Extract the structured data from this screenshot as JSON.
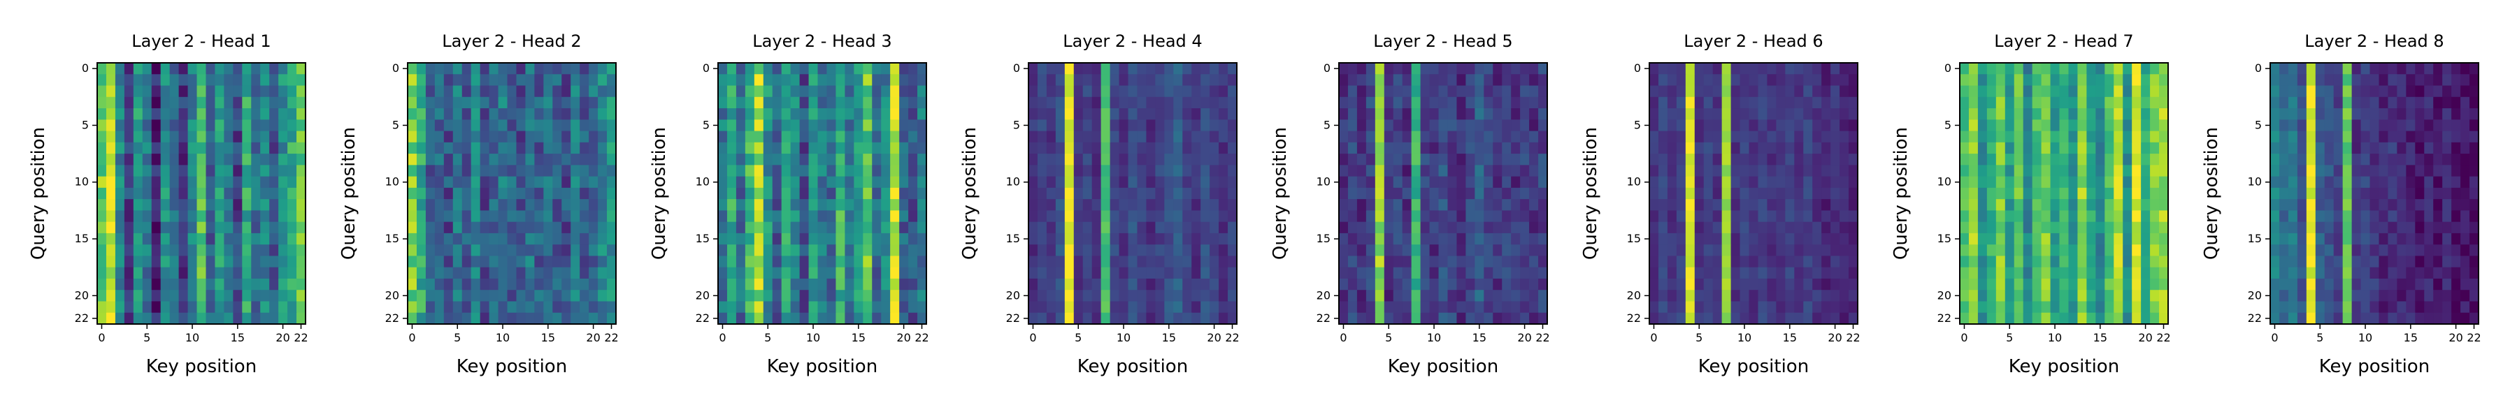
{
  "figure": {
    "colormap": "viridis",
    "background": "#ffffff"
  },
  "chart_data": [
    {
      "type": "heatmap",
      "title": "Layer 2 - Head 1",
      "xlabel": "Key position",
      "ylabel": "Query position",
      "xticks": [
        0,
        5,
        10,
        15,
        20,
        22
      ],
      "yticks": [
        0,
        5,
        10,
        15,
        20,
        22
      ],
      "n_queries": 23,
      "n_keys": 23,
      "column_profile": [
        0.78,
        0.9,
        0.45,
        0.2,
        0.55,
        0.4,
        0.1,
        0.5,
        0.35,
        0.15,
        0.45,
        0.7,
        0.3,
        0.55,
        0.4,
        0.2,
        0.6,
        0.35,
        0.45,
        0.25,
        0.5,
        0.6,
        0.75
      ],
      "row_noise": 0.14,
      "seed": 11
    },
    {
      "type": "heatmap",
      "title": "Layer 2 - Head 2",
      "xlabel": "Key position",
      "ylabel": "Query position",
      "xticks": [
        0,
        5,
        10,
        15,
        20,
        22
      ],
      "yticks": [
        0,
        5,
        10,
        15,
        20,
        22
      ],
      "n_queries": 23,
      "n_keys": 23,
      "column_profile": [
        0.8,
        0.6,
        0.3,
        0.35,
        0.25,
        0.4,
        0.3,
        0.45,
        0.25,
        0.35,
        0.4,
        0.3,
        0.25,
        0.4,
        0.3,
        0.35,
        0.3,
        0.25,
        0.4,
        0.3,
        0.35,
        0.45,
        0.5
      ],
      "row_noise": 0.15,
      "seed": 23
    },
    {
      "type": "heatmap",
      "title": "Layer 2 - Head 3",
      "xlabel": "Key position",
      "ylabel": "Query position",
      "xticks": [
        0,
        5,
        10,
        15,
        20,
        22
      ],
      "yticks": [
        0,
        5,
        10,
        15,
        20,
        22
      ],
      "n_queries": 23,
      "n_keys": 23,
      "column_profile": [
        0.4,
        0.6,
        0.35,
        0.65,
        0.85,
        0.5,
        0.3,
        0.6,
        0.45,
        0.25,
        0.55,
        0.4,
        0.35,
        0.65,
        0.4,
        0.55,
        0.75,
        0.35,
        0.45,
        0.95,
        0.3,
        0.25,
        0.4
      ],
      "row_noise": 0.15,
      "seed": 37
    },
    {
      "type": "heatmap",
      "title": "Layer 2 - Head 4",
      "xlabel": "Key position",
      "ylabel": "Query position",
      "xticks": [
        0,
        5,
        10,
        15,
        20,
        22
      ],
      "yticks": [
        0,
        5,
        10,
        15,
        20,
        22
      ],
      "n_queries": 23,
      "n_keys": 23,
      "column_profile": [
        0.15,
        0.2,
        0.15,
        0.25,
        0.97,
        0.15,
        0.2,
        0.15,
        0.7,
        0.2,
        0.15,
        0.25,
        0.2,
        0.15,
        0.2,
        0.25,
        0.3,
        0.2,
        0.15,
        0.25,
        0.2,
        0.15,
        0.2
      ],
      "row_noise": 0.07,
      "seed": 41
    },
    {
      "type": "heatmap",
      "title": "Layer 2 - Head 5",
      "xlabel": "Key position",
      "ylabel": "Query position",
      "xticks": [
        0,
        5,
        10,
        15,
        20,
        22
      ],
      "yticks": [
        0,
        5,
        10,
        15,
        20,
        22
      ],
      "n_queries": 23,
      "n_keys": 23,
      "column_profile": [
        0.15,
        0.2,
        0.15,
        0.2,
        0.85,
        0.15,
        0.2,
        0.15,
        0.65,
        0.2,
        0.15,
        0.25,
        0.2,
        0.15,
        0.2,
        0.3,
        0.2,
        0.15,
        0.2,
        0.15,
        0.2,
        0.15,
        0.2
      ],
      "row_noise": 0.1,
      "seed": 53
    },
    {
      "type": "heatmap",
      "title": "Layer 2 - Head 6",
      "xlabel": "Key position",
      "ylabel": "Query position",
      "xticks": [
        0,
        5,
        10,
        15,
        20,
        22
      ],
      "yticks": [
        0,
        5,
        10,
        15,
        20,
        22
      ],
      "n_queries": 23,
      "n_keys": 23,
      "column_profile": [
        0.15,
        0.2,
        0.15,
        0.2,
        0.95,
        0.15,
        0.2,
        0.15,
        0.85,
        0.15,
        0.2,
        0.15,
        0.2,
        0.15,
        0.15,
        0.2,
        0.15,
        0.2,
        0.15,
        0.1,
        0.15,
        0.1,
        0.1
      ],
      "row_noise": 0.06,
      "seed": 67
    },
    {
      "type": "heatmap",
      "title": "Layer 2 - Head 7",
      "xlabel": "Key position",
      "ylabel": "Query position",
      "xticks": [
        0,
        5,
        10,
        15,
        20,
        22
      ],
      "yticks": [
        0,
        5,
        10,
        15,
        20,
        22
      ],
      "n_queries": 23,
      "n_keys": 23,
      "column_profile": [
        0.7,
        0.85,
        0.5,
        0.65,
        0.8,
        0.55,
        0.75,
        0.45,
        0.7,
        0.8,
        0.55,
        0.65,
        0.5,
        0.85,
        0.6,
        0.45,
        0.7,
        0.9,
        0.5,
        0.95,
        0.6,
        0.8,
        0.85
      ],
      "row_noise": 0.1,
      "seed": 79
    },
    {
      "type": "heatmap",
      "title": "Layer 2 - Head 8",
      "xlabel": "Key position",
      "ylabel": "Query position",
      "xticks": [
        0,
        5,
        10,
        15,
        20,
        22
      ],
      "yticks": [
        0,
        5,
        10,
        15,
        20,
        22
      ],
      "n_queries": 23,
      "n_keys": 23,
      "column_profile": [
        0.45,
        0.35,
        0.4,
        0.25,
        0.97,
        0.3,
        0.25,
        0.2,
        0.75,
        0.15,
        0.2,
        0.15,
        0.1,
        0.15,
        0.1,
        0.1,
        0.05,
        0.1,
        0.05,
        0.1,
        0.05,
        0.05,
        0.05
      ],
      "row_noise": 0.08,
      "seed": 97
    }
  ]
}
